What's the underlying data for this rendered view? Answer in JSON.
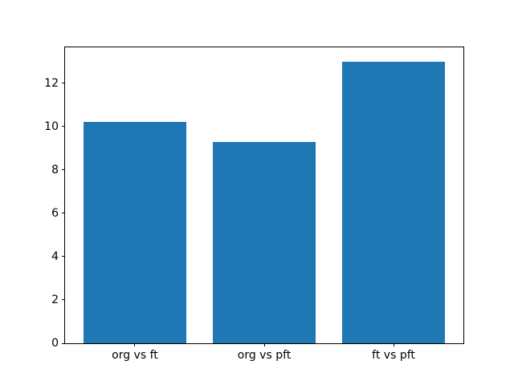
{
  "chart_data": {
    "type": "bar",
    "categories": [
      "org vs ft",
      "org vs pft",
      "ft vs pft"
    ],
    "values": [
      10.2,
      9.3,
      13.0
    ],
    "title": "",
    "xlabel": "",
    "ylabel": "",
    "ylim": [
      0,
      13.65
    ],
    "xlim": [
      -0.54,
      2.54
    ],
    "yticks": [
      0,
      2,
      4,
      6,
      8,
      10,
      12
    ],
    "bar_width": 0.8,
    "bar_color": "#1f77b4",
    "axis_color": "#000000",
    "background_color": "#ffffff",
    "grid": false,
    "legend": false
  }
}
